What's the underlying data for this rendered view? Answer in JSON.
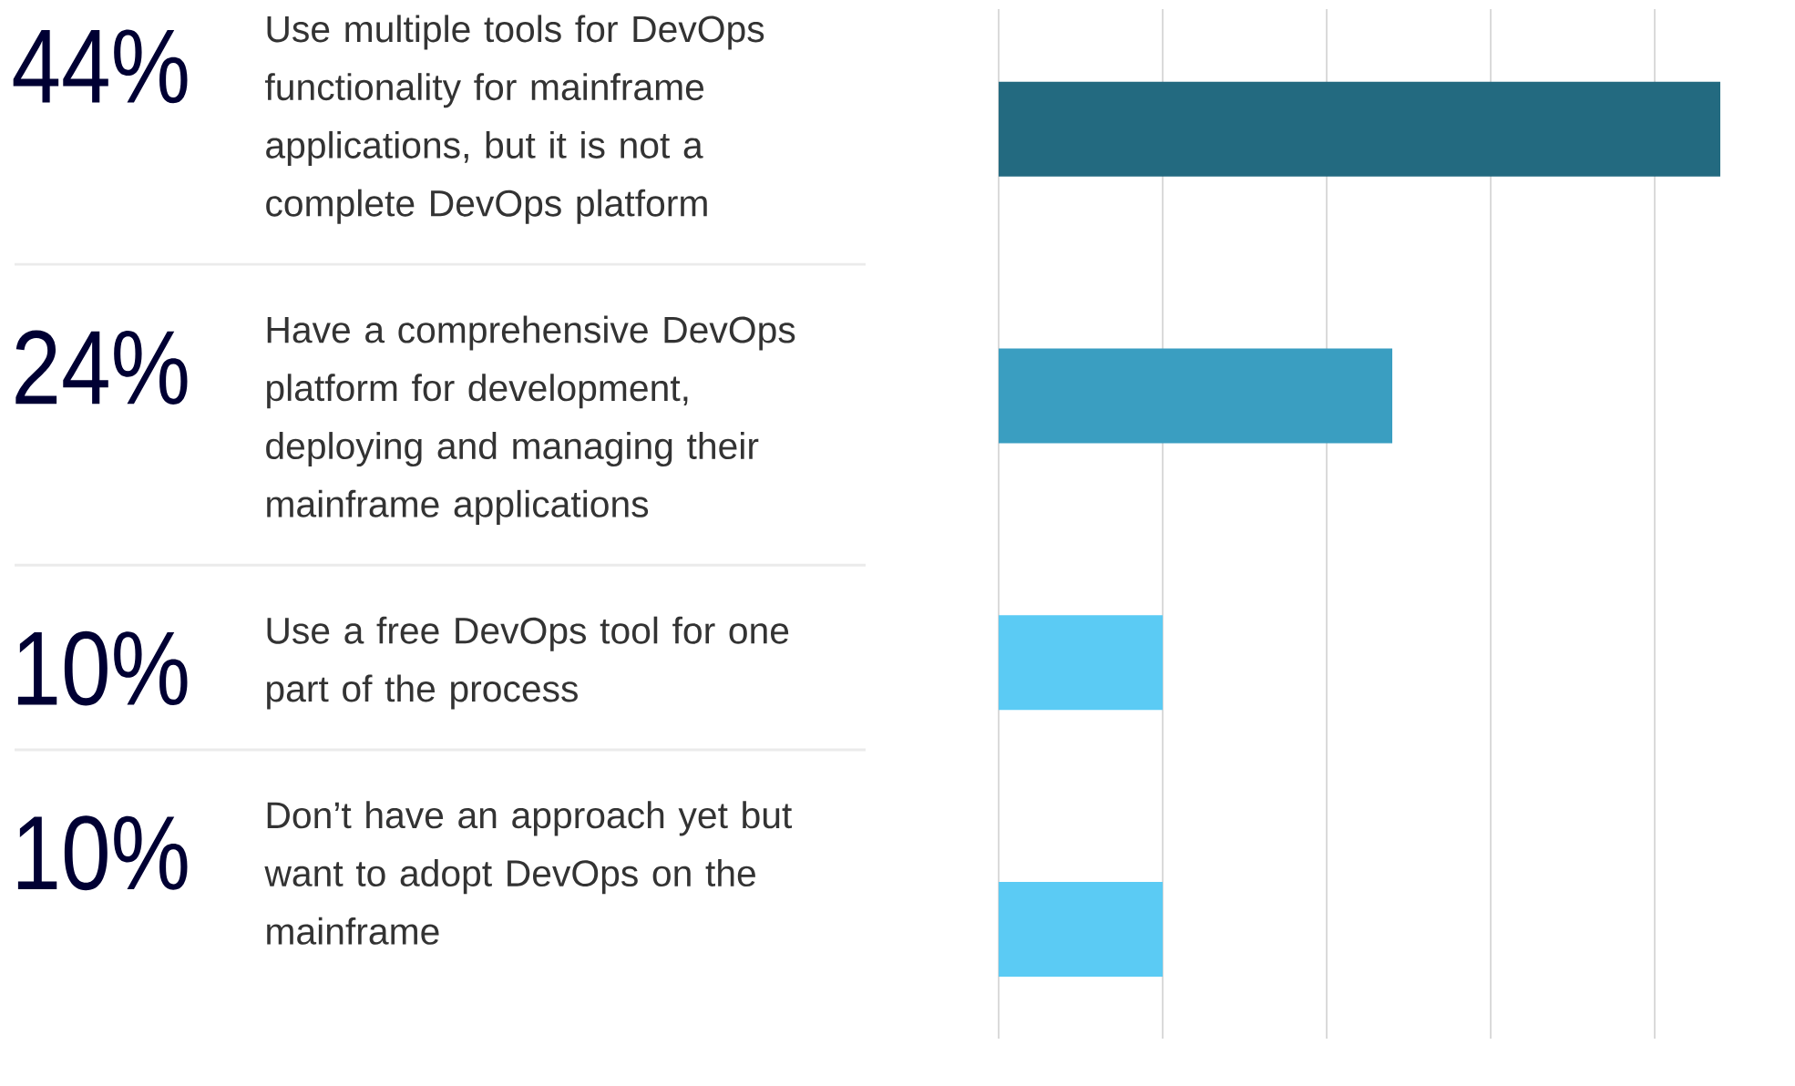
{
  "chart_data": {
    "type": "bar",
    "orientation": "horizontal",
    "categories": [
      "Use multiple tools for DevOps functionality for mainframe applications, but it is not a complete DevOps platform",
      "Have a comprehensive DevOps platform for development, deploying and managing their mainframe applications",
      "Use a free DevOps tool for one part of the process",
      "Don’t have an approach yet but want to adopt DevOps on the mainframe"
    ],
    "values": [
      44,
      24,
      10,
      10
    ],
    "value_labels": [
      "44%",
      "24%",
      "10%",
      "10%"
    ],
    "colors": [
      "#236a80",
      "#3a9ec1",
      "#5bcbf4",
      "#5bcbf4"
    ],
    "xticks": [
      {
        "value": 0,
        "label": null
      },
      {
        "value": 10,
        "label": null
      },
      {
        "value": 20,
        "label": null
      },
      {
        "value": 30,
        "label": null
      },
      {
        "value": 40,
        "label": null
      }
    ],
    "grid": "x"
  }
}
